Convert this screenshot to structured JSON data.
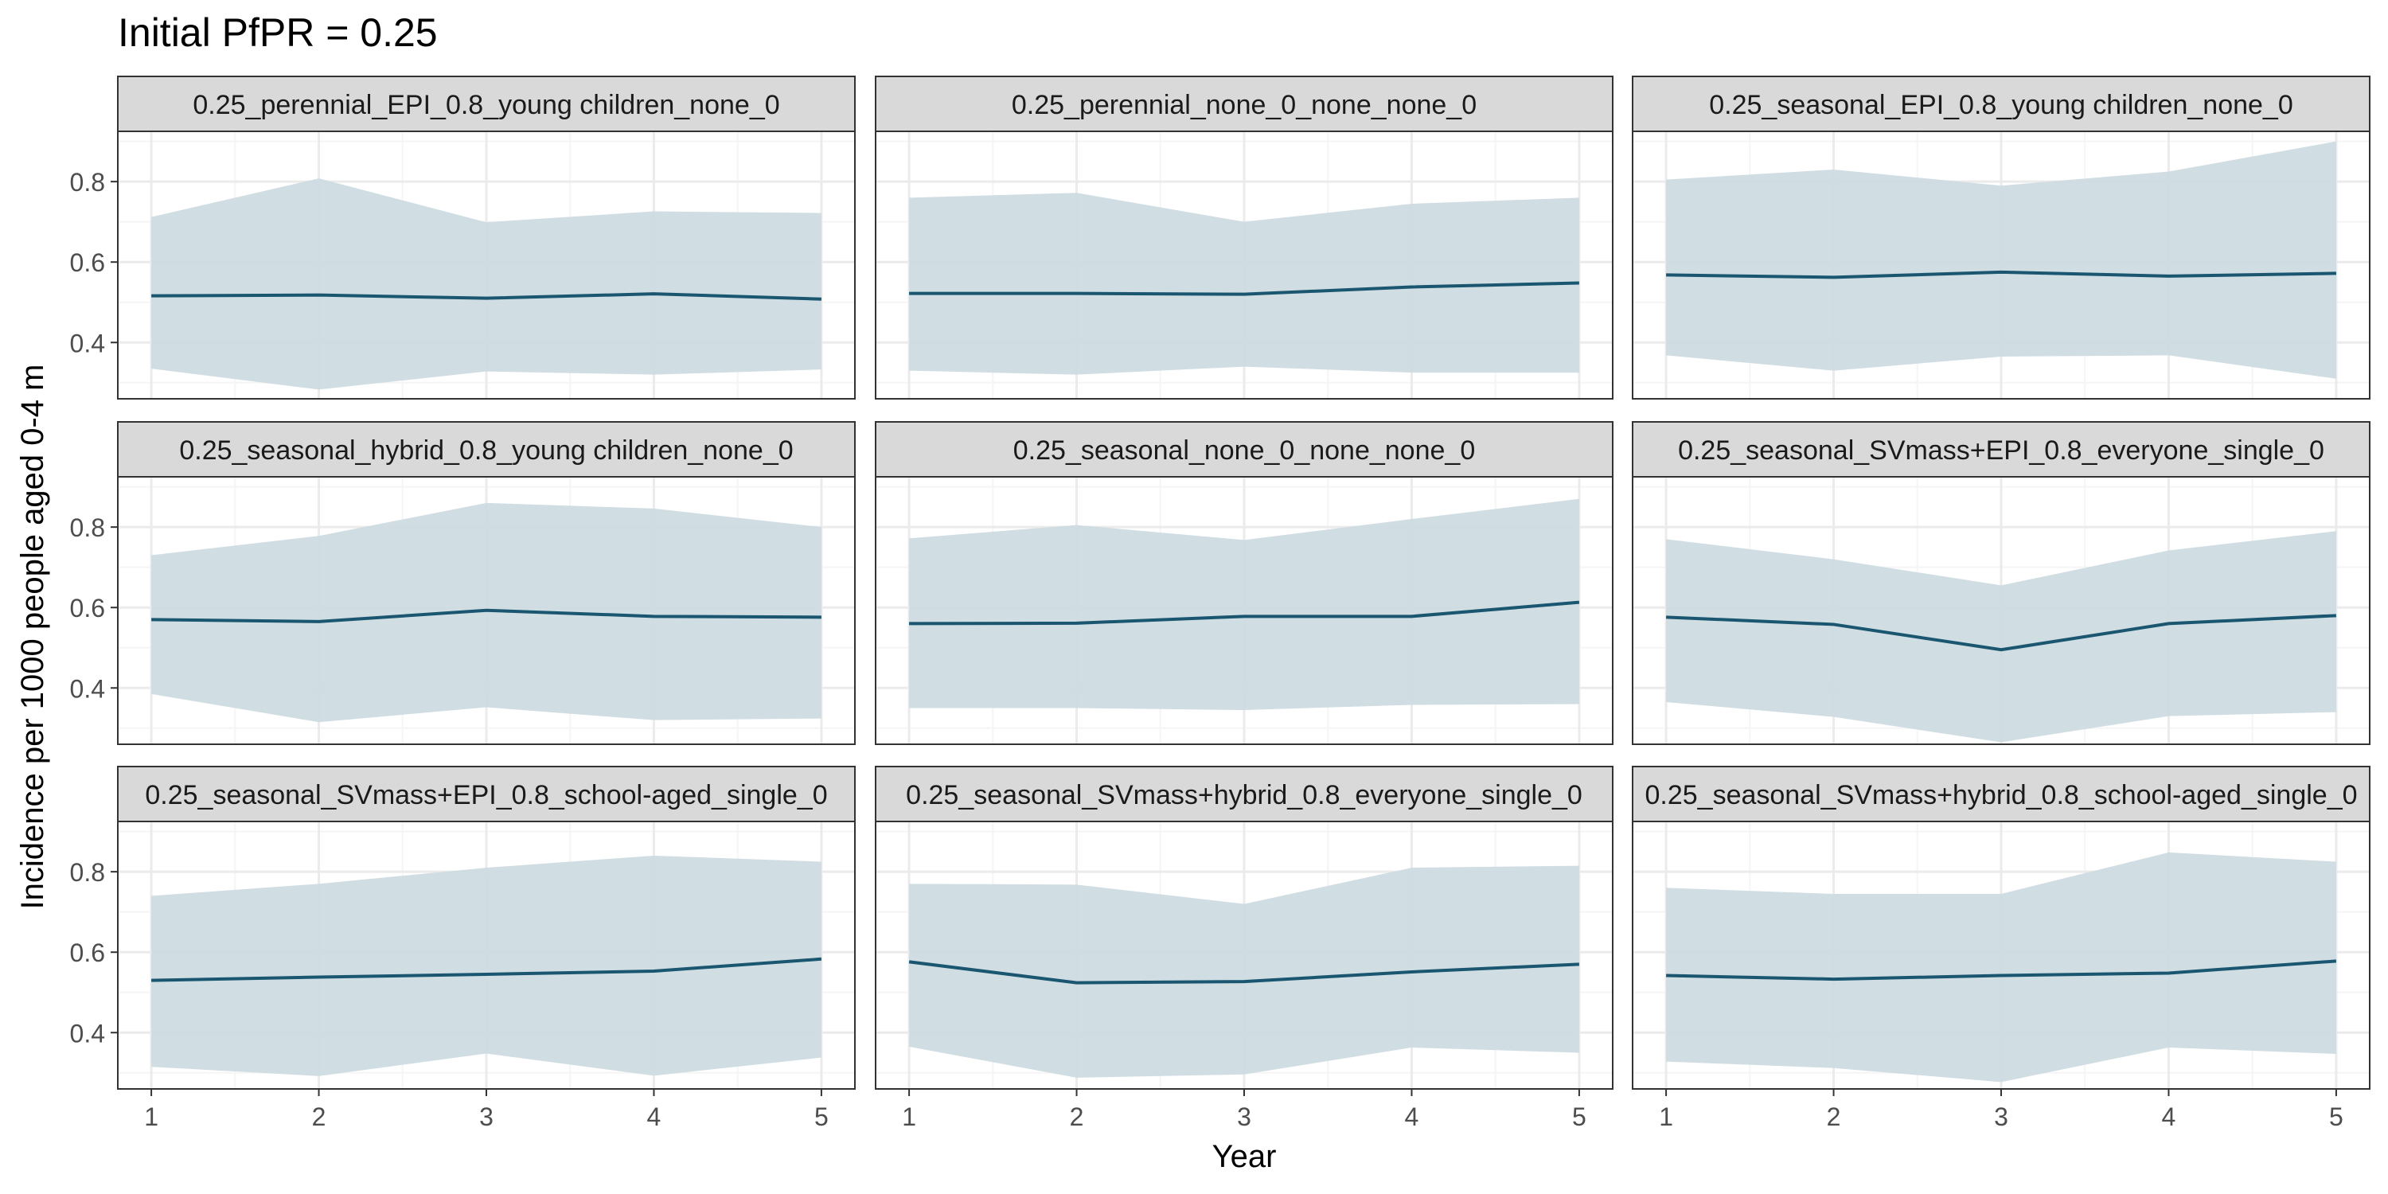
{
  "figure": {
    "title": "Initial PfPR = 0.25",
    "xlabel": "Year",
    "ylabel": "Incidence per 1000 people aged 0-4 m"
  },
  "colors": {
    "line": "#1a5670",
    "ribbon": "#cddbe2",
    "strip_fill": "#d9d9d9",
    "panel_border": "#333333",
    "grid_major": "#ebebeb",
    "grid_minor": "#f5f5f5",
    "axis_text": "#4d4d4d"
  },
  "chart_data": {
    "type": "line",
    "facet": "3x3 grid, strip label on top of each panel",
    "x": [
      1,
      2,
      3,
      4,
      5
    ],
    "xticks": [
      "1",
      "2",
      "3",
      "4",
      "5"
    ],
    "yticks": [
      "0.4",
      "0.6",
      "0.8"
    ],
    "xlim": [
      0.8,
      5.2
    ],
    "ylim": [
      0.26,
      0.925
    ],
    "grid": true,
    "panels": [
      {
        "label": "0.25_perennial_EPI_0.8_young children_none_0",
        "mean": [
          0.516,
          0.518,
          0.51,
          0.521,
          0.508
        ],
        "lower": [
          0.335,
          0.283,
          0.328,
          0.32,
          0.333
        ],
        "upper": [
          0.712,
          0.808,
          0.699,
          0.726,
          0.722
        ]
      },
      {
        "label": "0.25_perennial_none_0_none_none_0",
        "mean": [
          0.522,
          0.522,
          0.52,
          0.538,
          0.548
        ],
        "lower": [
          0.33,
          0.32,
          0.34,
          0.325,
          0.325
        ],
        "upper": [
          0.76,
          0.772,
          0.7,
          0.745,
          0.76
        ]
      },
      {
        "label": "0.25_seasonal_EPI_0.8_young children_none_0",
        "mean": [
          0.568,
          0.562,
          0.575,
          0.565,
          0.572
        ],
        "lower": [
          0.368,
          0.33,
          0.365,
          0.368,
          0.31
        ],
        "upper": [
          0.805,
          0.83,
          0.79,
          0.825,
          0.9
        ]
      },
      {
        "label": "0.25_seasonal_hybrid_0.8_young children_none_0",
        "mean": [
          0.57,
          0.565,
          0.593,
          0.578,
          0.576
        ],
        "lower": [
          0.385,
          0.315,
          0.352,
          0.32,
          0.324
        ],
        "upper": [
          0.73,
          0.778,
          0.86,
          0.846,
          0.8
        ]
      },
      {
        "label": "0.25_seasonal_none_0_none_none_0",
        "mean": [
          0.56,
          0.561,
          0.578,
          0.578,
          0.613
        ],
        "lower": [
          0.35,
          0.35,
          0.345,
          0.358,
          0.36
        ],
        "upper": [
          0.772,
          0.805,
          0.768,
          0.82,
          0.87
        ]
      },
      {
        "label": "0.25_seasonal_SVmass+EPI_0.8_everyone_single_0",
        "mean": [
          0.576,
          0.558,
          0.495,
          0.56,
          0.58
        ],
        "lower": [
          0.365,
          0.328,
          0.265,
          0.33,
          0.34
        ],
        "upper": [
          0.77,
          0.72,
          0.655,
          0.742,
          0.79
        ]
      },
      {
        "label": "0.25_seasonal_SVmass+EPI_0.8_school-aged_single_0",
        "mean": [
          0.53,
          0.538,
          0.545,
          0.553,
          0.583
        ],
        "lower": [
          0.315,
          0.292,
          0.348,
          0.293,
          0.338
        ],
        "upper": [
          0.74,
          0.77,
          0.81,
          0.84,
          0.825
        ]
      },
      {
        "label": "0.25_seasonal_SVmass+hybrid_0.8_everyone_single_0",
        "mean": [
          0.576,
          0.524,
          0.527,
          0.551,
          0.57
        ],
        "lower": [
          0.365,
          0.288,
          0.296,
          0.363,
          0.35
        ],
        "upper": [
          0.77,
          0.768,
          0.72,
          0.81,
          0.815
        ]
      },
      {
        "label": "0.25_seasonal_SVmass+hybrid_0.8_school-aged_single_0",
        "mean": [
          0.542,
          0.533,
          0.542,
          0.548,
          0.578
        ],
        "lower": [
          0.328,
          0.312,
          0.277,
          0.363,
          0.347
        ],
        "upper": [
          0.76,
          0.745,
          0.745,
          0.848,
          0.825
        ]
      }
    ]
  }
}
